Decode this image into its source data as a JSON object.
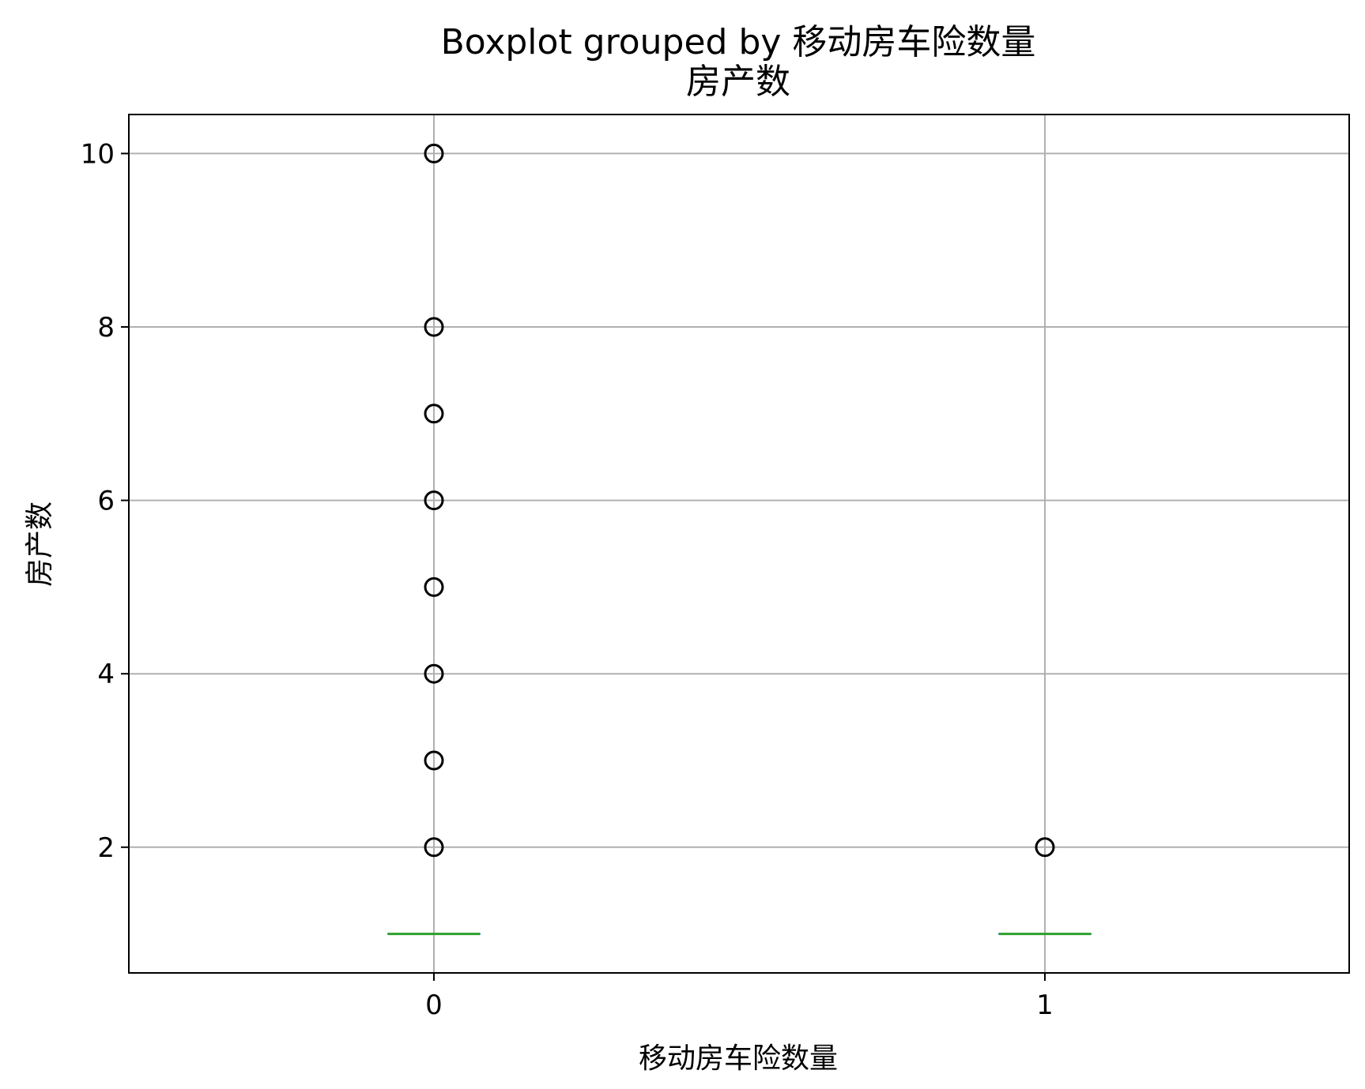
{
  "chart_data": {
    "type": "boxplot",
    "title": "Boxplot grouped by 移动房车险数量",
    "subtitle": "房产数",
    "xlabel": "移动房车险数量",
    "ylabel": "房产数",
    "categories": [
      "0",
      "1"
    ],
    "ylim": [
      0.55,
      10.45
    ],
    "yticks": [
      2,
      4,
      6,
      8,
      10
    ],
    "grid": true,
    "colors": {
      "median": "#2ca02c",
      "box": "#1f77b4",
      "outlier": "#000000",
      "grid": "#b0b0b0",
      "axes": "#000000"
    },
    "boxes": [
      {
        "category": "0",
        "q1": 1,
        "median": 1,
        "q3": 1,
        "whisker_low": 1,
        "whisker_high": 1,
        "outliers": [
          2,
          3,
          4,
          5,
          6,
          7,
          8,
          10
        ]
      },
      {
        "category": "1",
        "q1": 1,
        "median": 1,
        "q3": 1,
        "whisker_low": 1,
        "whisker_high": 1,
        "outliers": [
          2
        ]
      }
    ]
  }
}
